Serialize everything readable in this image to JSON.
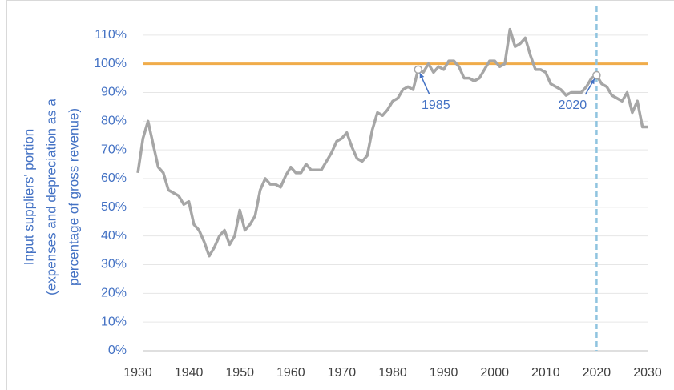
{
  "chart_data": {
    "type": "line",
    "y_label": [
      "Input suppliers' portion",
      "(expenses and depreciation as a",
      "percentage of  gross revenue)"
    ],
    "x": [
      1930,
      1931,
      1932,
      1933,
      1934,
      1935,
      1936,
      1937,
      1938,
      1939,
      1940,
      1941,
      1942,
      1943,
      1944,
      1945,
      1946,
      1947,
      1948,
      1949,
      1950,
      1951,
      1952,
      1953,
      1954,
      1955,
      1956,
      1957,
      1958,
      1959,
      1960,
      1961,
      1962,
      1963,
      1964,
      1965,
      1966,
      1967,
      1968,
      1969,
      1970,
      1971,
      1972,
      1973,
      1974,
      1975,
      1976,
      1977,
      1978,
      1979,
      1980,
      1981,
      1982,
      1983,
      1984,
      1985,
      1986,
      1987,
      1988,
      1989,
      1990,
      1991,
      1992,
      1993,
      1994,
      1995,
      1996,
      1997,
      1998,
      1999,
      2000,
      2001,
      2002,
      2003,
      2004,
      2005,
      2006,
      2007,
      2008,
      2009,
      2010,
      2011,
      2012,
      2013,
      2014,
      2015,
      2016,
      2017,
      2018,
      2019,
      2020,
      2021,
      2022,
      2023,
      2024,
      2025,
      2026,
      2027,
      2028,
      2029,
      2030
    ],
    "series": [
      {
        "color": "#a6a6a6",
        "values": [
          62,
          74,
          80,
          72,
          64,
          62,
          56,
          55,
          54,
          51,
          52,
          44,
          42,
          38,
          33,
          36,
          40,
          42,
          37,
          40,
          49,
          42,
          44,
          47,
          56,
          60,
          58,
          58,
          57,
          61,
          64,
          62,
          62,
          65,
          63,
          63,
          63,
          66,
          69,
          73,
          74,
          76,
          71,
          67,
          66,
          68,
          77,
          83,
          82,
          84,
          87,
          88,
          91,
          92,
          91,
          98,
          97,
          100,
          97,
          99,
          98,
          101,
          101,
          99,
          95,
          95,
          94,
          95,
          98,
          101,
          101,
          99,
          100,
          112,
          106,
          107,
          109,
          103,
          98,
          98,
          97,
          93,
          92,
          91,
          89,
          90,
          90,
          90,
          92,
          95,
          96,
          93,
          92,
          89,
          88,
          87,
          90,
          83,
          87,
          78,
          78
        ]
      }
    ],
    "xlim": [
      1930,
      2030
    ],
    "xticks": [
      1930,
      1940,
      1950,
      1960,
      1970,
      1980,
      1990,
      2000,
      2010,
      2020,
      2030
    ],
    "ylim": [
      0,
      120
    ],
    "yticks": [
      {
        "value": 0,
        "label": "0%"
      },
      {
        "value": 10,
        "label": "10%"
      },
      {
        "value": 20,
        "label": "20%"
      },
      {
        "value": 30,
        "label": "30%"
      },
      {
        "value": 40,
        "label": "40%"
      },
      {
        "value": 50,
        "label": "50%"
      },
      {
        "value": 60,
        "label": "60%"
      },
      {
        "value": 70,
        "label": "70%"
      },
      {
        "value": 80,
        "label": "80%"
      },
      {
        "value": 90,
        "label": "90%"
      },
      {
        "value": 100,
        "label": "100%"
      },
      {
        "value": 110,
        "label": "110%"
      }
    ],
    "grid": true,
    "reference_line": {
      "value": 100,
      "color": "#f0ac4a"
    },
    "vertical_line": {
      "value": 2020,
      "color": "#8fc4df"
    },
    "annotations": [
      {
        "text": "1985",
        "x": 1985,
        "y": 98
      },
      {
        "text": "2020",
        "x": 2020,
        "y": 96
      }
    ]
  }
}
